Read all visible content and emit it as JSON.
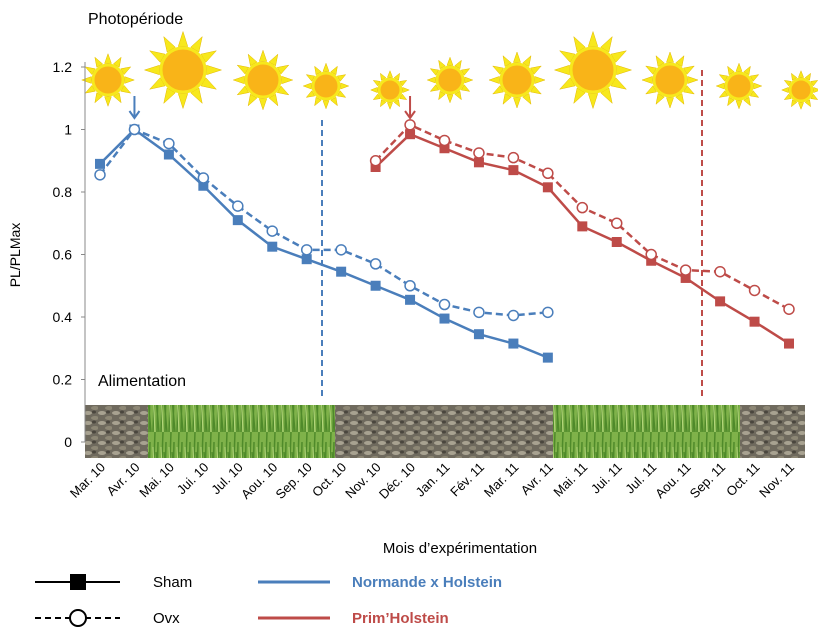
{
  "chart_data": {
    "type": "line",
    "top_label": "Photopériode",
    "bottom_label": "Alimentation",
    "y_label": "PL/PLMax",
    "x_label": "Mois d’expérimentation",
    "categories": [
      "Mar. 10",
      "Avr. 10",
      "Mai. 10",
      "Jui. 10",
      "Jul. 10",
      "Aou. 10",
      "Sep. 10",
      "Oct. 10",
      "Nov. 10",
      "Déc. 10",
      "Jan. 11",
      "Fév. 11",
      "Mar. 11",
      "Avr. 11",
      "Mai. 11",
      "Jui. 11",
      "Jul. 11",
      "Aou. 11",
      "Sep. 11",
      "Oct. 11",
      "Nov. 11"
    ],
    "ylim": [
      0,
      1.2
    ],
    "yticks": [
      0,
      0.2,
      0.4,
      0.6,
      0.8,
      1,
      1.2
    ],
    "series": [
      {
        "color": "#4a7ebb",
        "dashed": false,
        "marker": "square",
        "values": [
          0.89,
          1.0,
          0.92,
          0.82,
          0.71,
          0.625,
          0.585,
          0.545,
          0.5,
          0.455,
          0.395,
          0.345,
          0.315,
          0.27,
          null,
          null,
          null,
          null,
          null,
          null,
          null
        ]
      },
      {
        "color": "#4a7ebb",
        "dashed": true,
        "marker": "circle-open",
        "values": [
          0.855,
          1.0,
          0.955,
          0.845,
          0.755,
          0.675,
          0.615,
          0.615,
          0.57,
          0.5,
          0.44,
          0.415,
          0.405,
          0.415,
          null,
          null,
          null,
          null,
          null,
          null,
          null
        ]
      },
      {
        "color": "#be4b48",
        "dashed": false,
        "marker": "square",
        "values": [
          null,
          null,
          null,
          null,
          null,
          null,
          null,
          null,
          0.88,
          0.985,
          0.94,
          0.895,
          0.87,
          0.815,
          0.69,
          0.64,
          0.58,
          0.525,
          0.45,
          0.385,
          0.315
        ]
      },
      {
        "color": "#be4b48",
        "dashed": true,
        "marker": "circle-open",
        "values": [
          null,
          null,
          null,
          null,
          null,
          null,
          null,
          null,
          0.9,
          1.015,
          0.965,
          0.925,
          0.91,
          0.86,
          0.75,
          0.7,
          0.6,
          0.55,
          0.545,
          0.485,
          0.425
        ]
      }
    ],
    "legend": {
      "line_styles": [
        {
          "label": "Sham",
          "dashed": false,
          "marker": "square"
        },
        {
          "label": "Ovx",
          "dashed": true,
          "marker": "circle-open"
        }
      ],
      "colors": [
        {
          "label": "Normande x Holstein",
          "color": "#4a7ebb"
        },
        {
          "label": "Prim’Holstein",
          "color": "#be4b48"
        }
      ]
    }
  }
}
